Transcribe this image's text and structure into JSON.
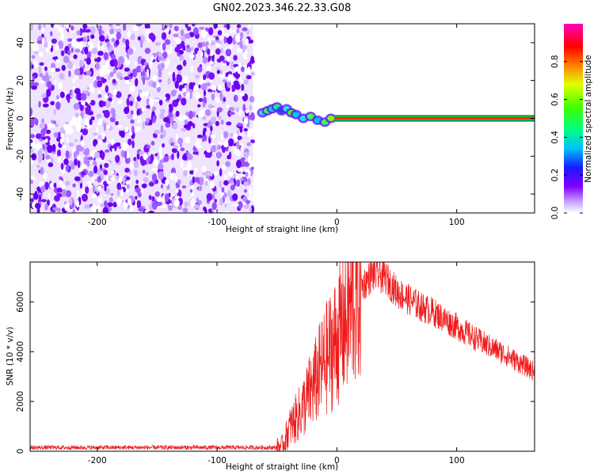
{
  "title": "GN02.2023.346.22.33.G08",
  "chart_data": [
    {
      "type": "heatmap",
      "xlabel": "Height of straight line (km)",
      "ylabel": "Frequency (Hz)",
      "xlim": [
        -256,
        165
      ],
      "ylim": [
        -50,
        50
      ],
      "xticks": [
        -200,
        -100,
        0,
        100
      ],
      "xtick_labels": [
        "-200",
        "-100",
        "0",
        "100"
      ],
      "yticks": [
        -40,
        -20,
        0,
        20,
        40
      ],
      "ytick_labels": [
        "-40",
        "-20",
        "0",
        "20",
        "40"
      ],
      "noise_region": [
        -256,
        -70
      ],
      "signal_region": [
        -70,
        165
      ],
      "signal_frequency": 0,
      "colorbar": {
        "label": "Normalized spectral amplitude",
        "range": [
          0,
          1
        ],
        "ticks": [
          0.0,
          0.2,
          0.4,
          0.6,
          0.8
        ],
        "tick_labels": [
          "0.0",
          "0.2",
          "0.4",
          "0.6",
          "0.8"
        ],
        "colormap": "rainbow"
      }
    },
    {
      "type": "line",
      "xlabel": "Height of straight line (km)",
      "ylabel": "SNR (10 * v/v)",
      "xlim": [
        -256,
        165
      ],
      "ylim": [
        0,
        7600
      ],
      "xticks": [
        -200,
        -100,
        0,
        100
      ],
      "xtick_labels": [
        "-200",
        "-100",
        "0",
        "100"
      ],
      "yticks": [
        0,
        2000,
        4000,
        6000
      ],
      "ytick_labels": [
        "0",
        "2000",
        "4000",
        "6000"
      ],
      "color": "#ff0000",
      "trend_points": [
        [
          -256,
          150
        ],
        [
          -50,
          150
        ],
        [
          -45,
          250
        ],
        [
          -40,
          900
        ],
        [
          -30,
          1600
        ],
        [
          -20,
          2600
        ],
        [
          -10,
          3600
        ],
        [
          0,
          4500
        ],
        [
          10,
          5600
        ],
        [
          20,
          6600
        ],
        [
          30,
          7100
        ],
        [
          40,
          7000
        ],
        [
          50,
          6400
        ],
        [
          60,
          6100
        ],
        [
          70,
          5800
        ],
        [
          80,
          5600
        ],
        [
          100,
          5000
        ],
        [
          120,
          4400
        ],
        [
          140,
          3900
        ],
        [
          165,
          3200
        ]
      ]
    }
  ]
}
